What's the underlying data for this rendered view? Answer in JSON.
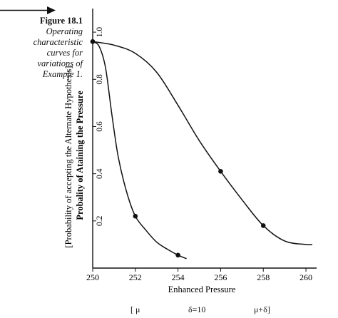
{
  "caption": {
    "number": "Figure 18.1",
    "lines": [
      "Operating",
      "characteristic",
      "curves for",
      "variations of",
      "Example 1."
    ]
  },
  "bottom_notes": {
    "left": "[ μ",
    "middle": "δ=10",
    "right": "μ+δ]"
  },
  "chart_data": {
    "type": "line",
    "xlabel": "Enhanced Pressure",
    "ylabel_outer": "[Probability of accepting the Alternate Hypothesis]",
    "ylabel_inner": "Probality of Ataining the Pressure",
    "xlim": [
      250,
      260.5
    ],
    "ylim": [
      0,
      1.1
    ],
    "x_ticks": [
      "250",
      "252",
      "254",
      "256",
      "258",
      "260"
    ],
    "y_ticks": [
      "0.2",
      "0.4",
      "0.6",
      "0.8",
      "1.0"
    ],
    "series": [
      {
        "curve": [
          [
            250,
            0.96
          ],
          [
            250.3,
            0.94
          ],
          [
            250.6,
            0.85
          ],
          [
            250.9,
            0.65
          ],
          [
            251.2,
            0.47
          ],
          [
            251.6,
            0.32
          ],
          [
            252,
            0.22
          ],
          [
            252.5,
            0.16
          ],
          [
            253,
            0.11
          ],
          [
            253.5,
            0.08
          ],
          [
            254,
            0.055
          ],
          [
            254.4,
            0.04
          ]
        ],
        "points": [
          [
            250,
            0.96
          ],
          [
            252,
            0.22
          ],
          [
            254,
            0.055
          ]
        ]
      },
      {
        "curve": [
          [
            250,
            0.96
          ],
          [
            251,
            0.945
          ],
          [
            252,
            0.91
          ],
          [
            253,
            0.83
          ],
          [
            254,
            0.69
          ],
          [
            255,
            0.54
          ],
          [
            256,
            0.41
          ],
          [
            257,
            0.29
          ],
          [
            258,
            0.18
          ],
          [
            259,
            0.115
          ],
          [
            260,
            0.1
          ],
          [
            260.3,
            0.1
          ]
        ],
        "points": [
          [
            250,
            0.96
          ],
          [
            256,
            0.41
          ],
          [
            258,
            0.18
          ]
        ]
      }
    ]
  }
}
